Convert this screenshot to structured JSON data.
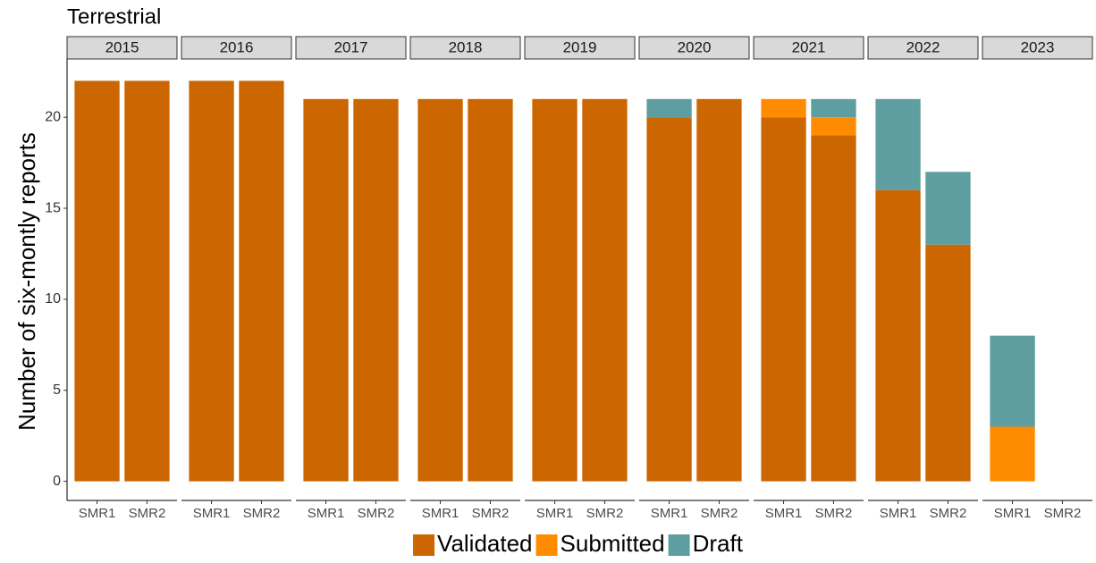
{
  "chart_data": {
    "type": "bar",
    "stacked": true,
    "title": "Terrestrial",
    "ylabel": "Number of six-montly reports",
    "facets": [
      "2015",
      "2016",
      "2017",
      "2018",
      "2019",
      "2020",
      "2021",
      "2022",
      "2023"
    ],
    "categories": [
      "SMR1",
      "SMR2"
    ],
    "series": [
      {
        "name": "Validated",
        "color": "#cc6600",
        "values": [
          [
            22,
            22
          ],
          [
            22,
            22
          ],
          [
            21,
            21
          ],
          [
            21,
            21
          ],
          [
            21,
            21
          ],
          [
            20,
            21
          ],
          [
            20,
            19
          ],
          [
            16,
            13
          ],
          [
            0,
            null
          ]
        ]
      },
      {
        "name": "Submitted",
        "color": "#ff8c00",
        "values": [
          [
            0,
            0
          ],
          [
            0,
            0
          ],
          [
            0,
            0
          ],
          [
            0,
            0
          ],
          [
            0,
            0
          ],
          [
            0,
            0
          ],
          [
            1,
            1
          ],
          [
            0,
            0
          ],
          [
            3,
            null
          ]
        ]
      },
      {
        "name": "Draft",
        "color": "#5f9ea0",
        "values": [
          [
            0,
            0
          ],
          [
            0,
            0
          ],
          [
            0,
            0
          ],
          [
            0,
            0
          ],
          [
            0,
            0
          ],
          [
            1,
            0
          ],
          [
            0,
            1
          ],
          [
            5,
            4
          ],
          [
            5,
            null
          ]
        ]
      }
    ],
    "ylim": [
      -1.05,
      23.2
    ],
    "yticks": [
      0,
      5,
      10,
      15,
      20
    ],
    "grid": false,
    "legend": "bottom"
  }
}
